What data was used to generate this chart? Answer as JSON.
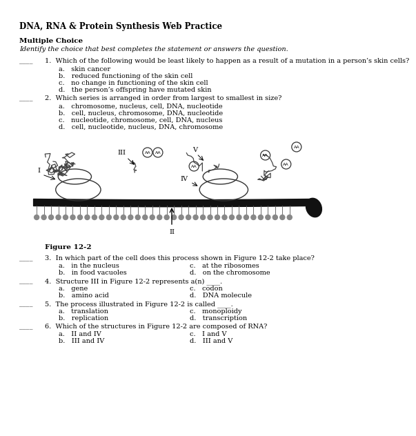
{
  "title": "DNA, RNA & Protein Synthesis Web Practice",
  "section": "Multiple Choice",
  "section_italic": "Identify the choice that best completes the statement or answers the question.",
  "figure_caption": "Figure 12-2",
  "bg_color": "#ffffff",
  "text_color": "#000000",
  "q1_text": "1.  Which of the following would be least likely to happen as a result of a mutation in a person’s skin cells?",
  "q1_choices": [
    "a.   skin cancer",
    "b.   reduced functioning of the skin cell",
    "c.   no change in functioning of the skin cell",
    "d.   the person’s offspring have mutated skin"
  ],
  "q2_text": "2.  Which series is arranged in order from largest to smallest in size?",
  "q2_choices": [
    "a.   chromosome, nucleus, cell, DNA, nucleotide",
    "b.   cell, nucleus, chromosome, DNA, nucleotide",
    "c.   nucleotide, chromosome, cell, DNA, nucleus",
    "d.   cell, nucleotide, nucleus, DNA, chromosome"
  ],
  "q3_text": "3.  In which part of the cell does this process shown in Figure 12-2 take place?",
  "q3_left": [
    "a.   in the nucleus",
    "b.   in food vacuoles"
  ],
  "q3_right": [
    "c.   at the ribosomes",
    "d.   on the chromosome"
  ],
  "q4_text": "4.  Structure III in Figure 12-2 represents a(n) ____.",
  "q4_left": [
    "a.   gene",
    "b.   amino acid"
  ],
  "q4_right": [
    "c.   codon",
    "d.   DNA molecule"
  ],
  "q5_text": "5.  The process illustrated in Figure 12-2 is called ____.",
  "q5_left": [
    "a.   translation",
    "b.   replication"
  ],
  "q5_right": [
    "c.   monoploidy",
    "d.   transcription"
  ],
  "q6_text": "6.  Which of the structures in Figure 12-2 are composed of RNA?",
  "q6_left": [
    "a.   II and IV",
    "b.   III and IV"
  ],
  "q6_right": [
    "c.   I and V",
    "d.   III and V"
  ]
}
